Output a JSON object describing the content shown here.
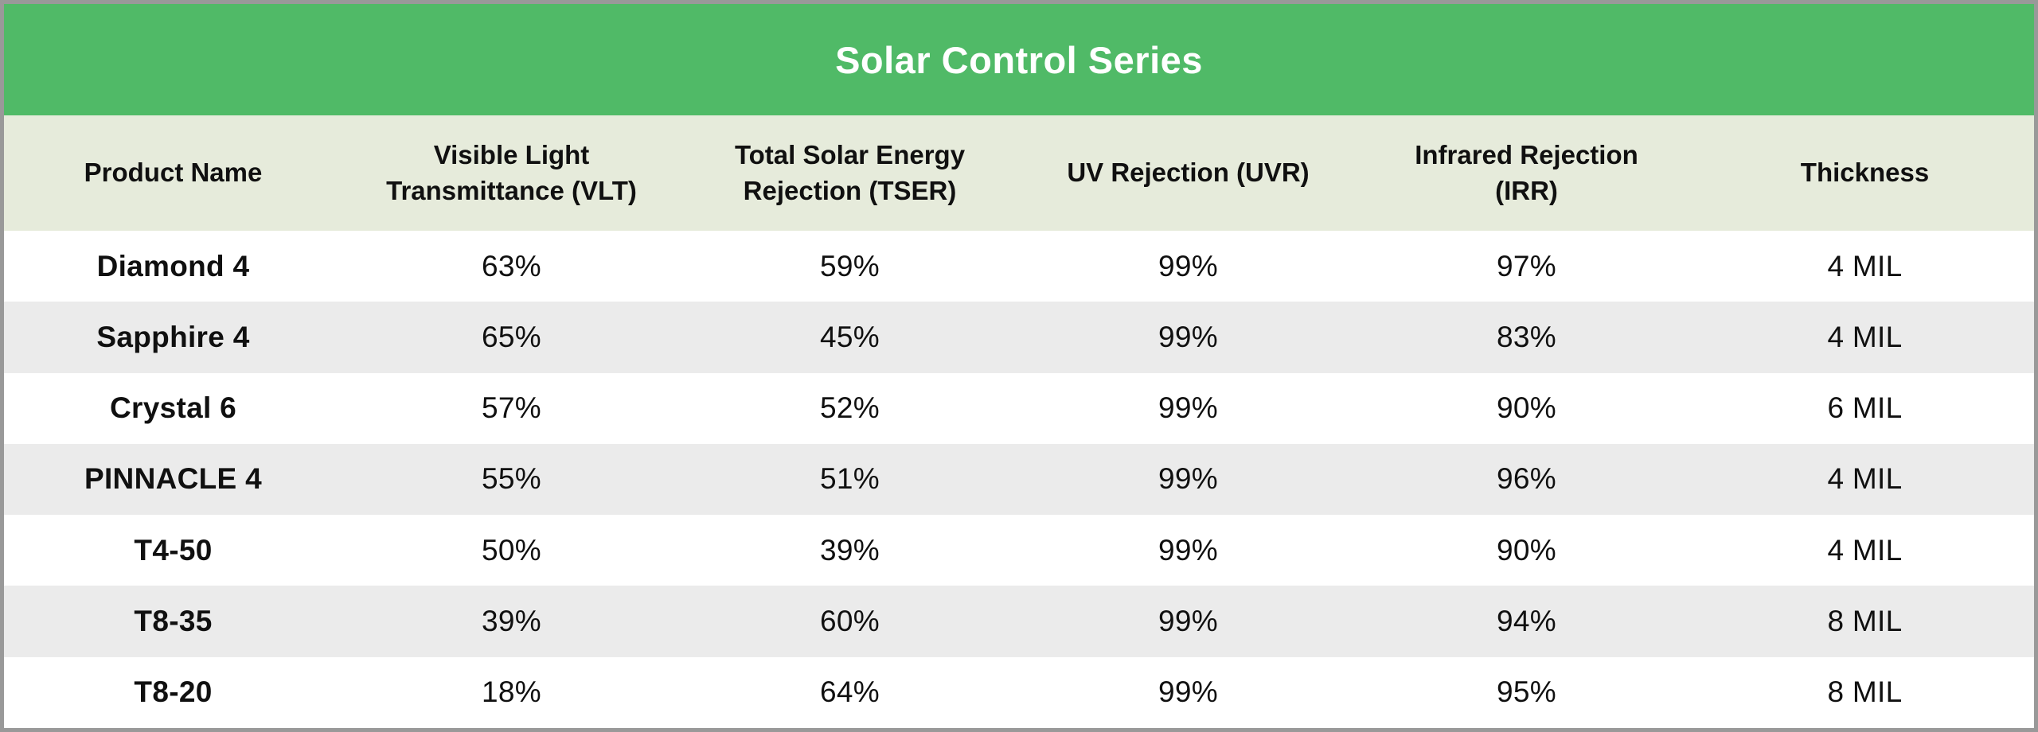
{
  "chart_data": {
    "type": "table",
    "title": "Solar Control Series",
    "columns": [
      "Product Name",
      "Visible Light Transmittance (VLT)",
      "Total Solar Energy Rejection (TSER)",
      "UV Rejection (UVR)",
      "Infrared Rejection (IRR)",
      "Thickness"
    ],
    "column_keys": [
      "product",
      "vlt",
      "tser",
      "uvr",
      "irr",
      "thickness"
    ],
    "rows": [
      [
        "Diamond 4",
        "63%",
        "59%",
        "99%",
        "97%",
        "4 MIL"
      ],
      [
        "Sapphire 4",
        "65%",
        "45%",
        "99%",
        "83%",
        "4 MIL"
      ],
      [
        "Crystal 6",
        "57%",
        "52%",
        "99%",
        "90%",
        "6 MIL"
      ],
      [
        "PINNACLE 4",
        "55%",
        "51%",
        "99%",
        "96%",
        "4 MIL"
      ],
      [
        "T4-50",
        "50%",
        "39%",
        "99%",
        "90%",
        "4 MIL"
      ],
      [
        "T8-35",
        "39%",
        "60%",
        "99%",
        "94%",
        "8 MIL"
      ],
      [
        "T8-20",
        "18%",
        "64%",
        "99%",
        "95%",
        "8 MIL"
      ]
    ]
  },
  "display": {
    "header_lines": [
      "Product Name",
      "Visible Light\nTransmittance (VLT)",
      "Total Solar Energy\nRejection (TSER)",
      "UV Rejection (UVR)",
      "Infrared Rejection\n(IRR)",
      "Thickness"
    ]
  },
  "colors": {
    "title_bg": "#50ba67",
    "title_text": "#ffffff",
    "header_bg": "#e6ebdb",
    "row_bg": "#ffffff",
    "row_alt_bg": "#ebebeb",
    "text": "#101010",
    "border": "#999999"
  }
}
